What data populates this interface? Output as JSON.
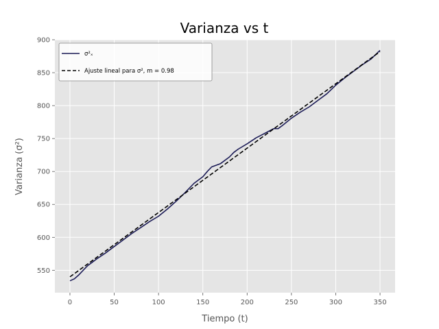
{
  "chart_data": {
    "type": "line",
    "title": "Varianza vs t",
    "xlabel": "Tiempo (t)",
    "ylabel": "Varianza (σ²)",
    "xlim": [
      -17,
      367
    ],
    "ylim": [
      516,
      900
    ],
    "xticks": [
      0,
      50,
      100,
      150,
      200,
      250,
      300,
      350
    ],
    "yticks": [
      550,
      600,
      650,
      700,
      750,
      800,
      850,
      900
    ],
    "grid": true,
    "legend_position": "top-left",
    "background_color": "#e5e5e5",
    "series": [
      {
        "name": "σ²ₓ",
        "color": "#1a1a55",
        "style": "solid",
        "x": [
          0,
          5,
          10,
          15,
          20,
          25,
          30,
          40,
          50,
          60,
          70,
          80,
          90,
          100,
          110,
          120,
          130,
          140,
          150,
          155,
          160,
          170,
          180,
          185,
          190,
          200,
          210,
          220,
          230,
          235,
          240,
          250,
          260,
          270,
          280,
          290,
          300,
          310,
          320,
          330,
          340,
          350
        ],
        "y": [
          534,
          537,
          543,
          550,
          557,
          562,
          567,
          576,
          586,
          596,
          606,
          615,
          624,
          632,
          643,
          655,
          668,
          682,
          692,
          700,
          707,
          712,
          722,
          729,
          734,
          742,
          751,
          758,
          765,
          765,
          770,
          781,
          790,
          798,
          808,
          818,
          831,
          842,
          852,
          862,
          871,
          884
        ]
      },
      {
        "name": "Ajuste lineal para σ², m = 0.98",
        "color": "#000000",
        "style": "dashed",
        "x": [
          0,
          350
        ],
        "y": [
          540,
          882
        ]
      }
    ]
  }
}
